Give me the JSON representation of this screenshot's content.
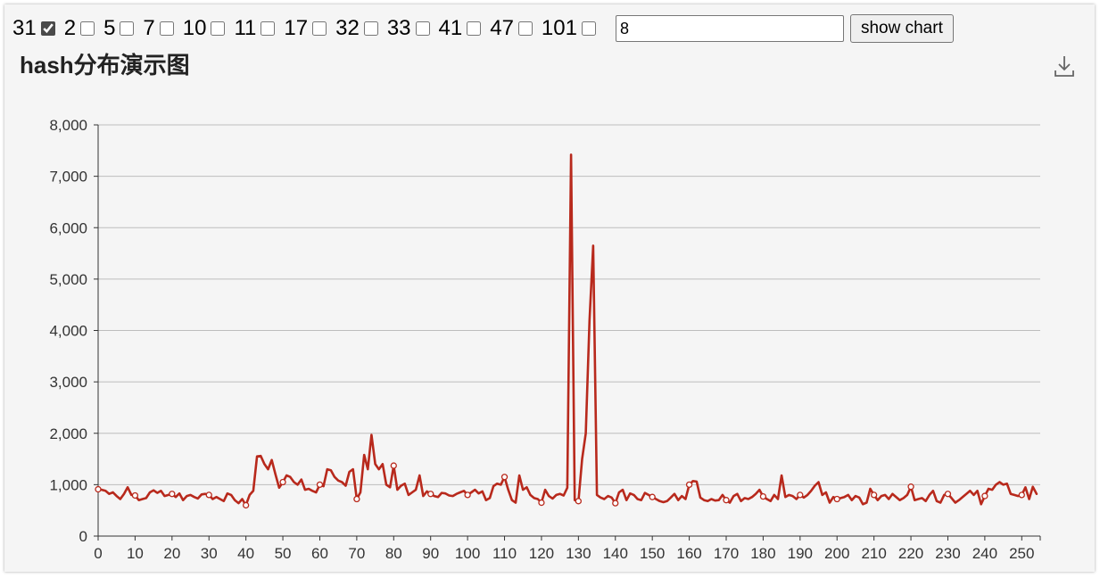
{
  "controls": {
    "options": [
      {
        "label": "31",
        "checked": true
      },
      {
        "label": "2",
        "checked": false
      },
      {
        "label": "5",
        "checked": false
      },
      {
        "label": "7",
        "checked": false
      },
      {
        "label": "10",
        "checked": false
      },
      {
        "label": "11",
        "checked": false
      },
      {
        "label": "17",
        "checked": false
      },
      {
        "label": "32",
        "checked": false
      },
      {
        "label": "33",
        "checked": false
      },
      {
        "label": "41",
        "checked": false
      },
      {
        "label": "47",
        "checked": false
      },
      {
        "label": "101",
        "checked": false
      }
    ],
    "bucket_value": "8",
    "show_chart_label": "show chart"
  },
  "toolbox": {
    "icon": "download-icon"
  },
  "chart_data": {
    "type": "line",
    "title": "hash分布演示图",
    "xlabel": "",
    "ylabel": "",
    "xlim": [
      0,
      255
    ],
    "ylim": [
      0,
      8000
    ],
    "x_ticks": [
      0,
      10,
      20,
      30,
      40,
      50,
      60,
      70,
      80,
      90,
      100,
      110,
      120,
      130,
      140,
      150,
      160,
      170,
      180,
      190,
      200,
      210,
      220,
      230,
      240,
      250
    ],
    "y_ticks": [
      0,
      1000,
      2000,
      3000,
      4000,
      5000,
      6000,
      7000,
      8000
    ],
    "y_tick_labels": [
      "0",
      "1,000",
      "2,000",
      "3,000",
      "4,000",
      "5,000",
      "6,000",
      "7,000",
      "8,000"
    ],
    "grid": true,
    "line_color": "#b8291c",
    "series": [
      {
        "name": "",
        "marker_every": 10,
        "x_start": 0,
        "values": [
          910,
          900,
          880,
          820,
          850,
          780,
          720,
          820,
          950,
          800,
          790,
          700,
          720,
          740,
          850,
          890,
          840,
          880,
          780,
          800,
          820,
          760,
          830,
          700,
          780,
          800,
          760,
          730,
          810,
          820,
          800,
          720,
          760,
          720,
          680,
          830,
          800,
          700,
          640,
          720,
          600,
          800,
          880,
          1550,
          1560,
          1400,
          1300,
          1480,
          1200,
          940,
          1050,
          1180,
          1150,
          1050,
          1000,
          1100,
          900,
          920,
          880,
          850,
          1000,
          970,
          1300,
          1280,
          1150,
          1080,
          1050,
          980,
          1250,
          1300,
          720,
          850,
          1580,
          1300,
          1970,
          1400,
          1300,
          1400,
          1000,
          950,
          1370,
          900,
          980,
          1020,
          800,
          850,
          900,
          1180,
          780,
          870,
          820,
          780,
          760,
          840,
          830,
          790,
          780,
          820,
          850,
          880,
          800,
          850,
          900,
          830,
          870,
          700,
          740,
          970,
          1020,
          1000,
          1150,
          900,
          700,
          650,
          1180,
          900,
          950,
          800,
          740,
          720,
          650,
          900,
          780,
          730,
          800,
          820,
          790,
          940,
          7420,
          700,
          680,
          1500,
          2000,
          4200,
          5650,
          800,
          750,
          720,
          780,
          750,
          640,
          850,
          900,
          700,
          830,
          800,
          720,
          700,
          840,
          800,
          760,
          720,
          680,
          660,
          680,
          750,
          820,
          700,
          780,
          720,
          1000,
          1070,
          1060,
          750,
          700,
          680,
          720,
          690,
          700,
          800,
          700,
          650,
          780,
          820,
          680,
          740,
          720,
          760,
          820,
          900,
          770,
          720,
          680,
          800,
          720,
          1180,
          760,
          800,
          780,
          720,
          800,
          750,
          800,
          880,
          980,
          1050,
          800,
          850,
          650,
          760,
          720,
          740,
          760,
          800,
          700,
          780,
          750,
          620,
          650,
          920,
          800,
          700,
          780,
          800,
          720,
          820,
          760,
          700,
          740,
          800,
          960,
          700,
          720,
          740,
          680,
          800,
          880,
          680,
          650,
          800,
          820,
          740,
          650,
          700,
          760,
          820,
          880,
          800,
          880,
          620,
          780,
          920,
          900,
          1000,
          1050,
          1000,
          1020,
          820,
          800,
          780,
          800,
          950,
          720,
          960,
          820
        ]
      }
    ]
  }
}
